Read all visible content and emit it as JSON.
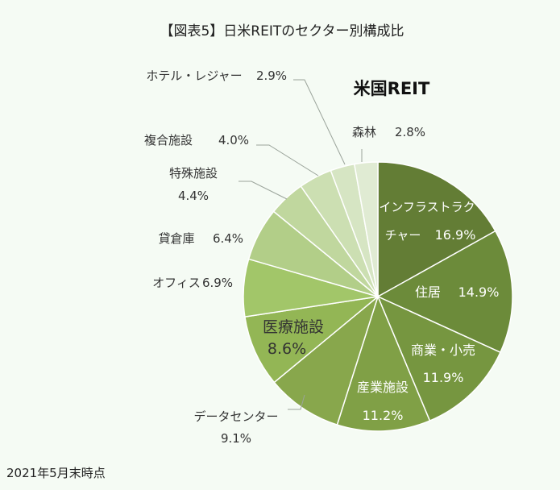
{
  "chart_data": {
    "type": "pie",
    "title": "【図表5】日米REITのセクター別構成比",
    "subtitle": "米国REIT",
    "unit": "%",
    "slices": [
      {
        "label": "インフラストラクチャー",
        "value": 16.9,
        "value_text": "16.9%",
        "color": "#637d35"
      },
      {
        "label": "住居",
        "value": 14.9,
        "value_text": "14.9%",
        "color": "#6c8b3a"
      },
      {
        "label": "商業・小売",
        "value": 11.9,
        "value_text": "11.9%",
        "color": "#769640"
      },
      {
        "label": "産業施設",
        "value": 11.2,
        "value_text": "11.2%",
        "color": "#80a046"
      },
      {
        "label": "データセンター",
        "value": 9.1,
        "value_text": "9.1%",
        "color": "#88a74c"
      },
      {
        "label": "医療施設",
        "value": 8.6,
        "value_text": "8.6%",
        "color": "#93b655"
      },
      {
        "label": "オフィス",
        "value": 6.9,
        "value_text": "6.9%",
        "color": "#a2c669"
      },
      {
        "label": "貸倉庫",
        "value": 6.4,
        "value_text": "6.4%",
        "color": "#b2ce88"
      },
      {
        "label": "特殊施設",
        "value": 4.4,
        "value_text": "4.4%",
        "color": "#c0d79e"
      },
      {
        "label": "複合施設",
        "value": 4.0,
        "value_text": "4.0%",
        "color": "#ccdfb2"
      },
      {
        "label": "ホテル・レジャー",
        "value": 2.9,
        "value_text": "2.9%",
        "color": "#d6e5c3"
      },
      {
        "label": "森林",
        "value": 2.8,
        "value_text": "2.8%",
        "color": "#e0ebd3"
      }
    ]
  },
  "footnote": "2021年5月末時点"
}
